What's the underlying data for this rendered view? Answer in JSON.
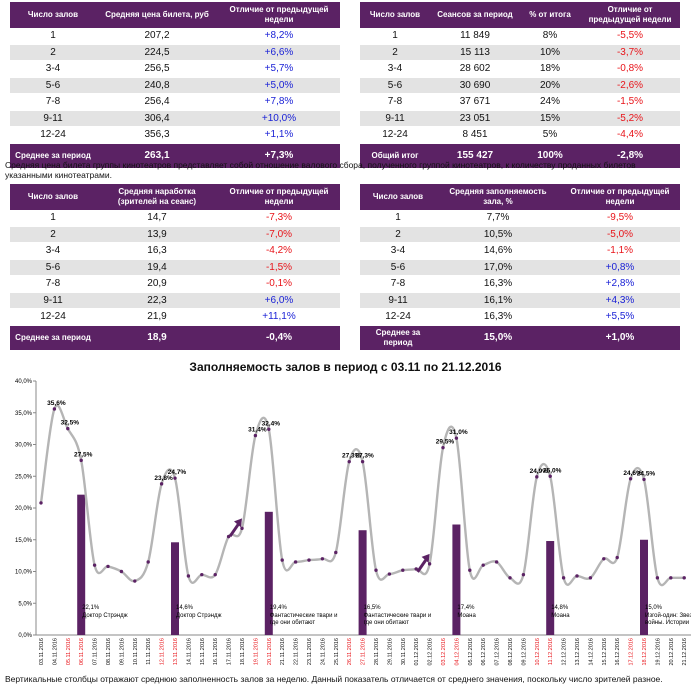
{
  "table_price": {
    "headers": [
      "Число залов",
      "Средняя цена билета, руб",
      "Отличие от предыдущей недели"
    ],
    "rows": [
      {
        "halls": "1",
        "value": "207,2",
        "change": "+8,2%"
      },
      {
        "halls": "2",
        "value": "224,5",
        "change": "+6,6%"
      },
      {
        "halls": "3-4",
        "value": "256,5",
        "change": "+5,7%"
      },
      {
        "halls": "5-6",
        "value": "240,8",
        "change": "+5,0%"
      },
      {
        "halls": "7-8",
        "value": "256,4",
        "change": "+7,8%"
      },
      {
        "halls": "9-11",
        "value": "306,4",
        "change": "+10,0%"
      },
      {
        "halls": "12-24",
        "value": "356,3",
        "change": "+1,1%"
      }
    ],
    "total": {
      "label": "Среднее за период",
      "value": "263,1",
      "change": "+7,3%"
    }
  },
  "table_sessions": {
    "headers": [
      "Число залов",
      "Сеансов за период",
      "% от итога",
      "Отличие от предыдущей недели"
    ],
    "rows": [
      {
        "halls": "1",
        "value": "11 849",
        "pct": "8%",
        "change": "-5,5%"
      },
      {
        "halls": "2",
        "value": "15 113",
        "pct": "10%",
        "change": "-3,7%"
      },
      {
        "halls": "3-4",
        "value": "28 602",
        "pct": "18%",
        "change": "-0,8%"
      },
      {
        "halls": "5-6",
        "value": "30 690",
        "pct": "20%",
        "change": "-2,6%"
      },
      {
        "halls": "7-8",
        "value": "37 671",
        "pct": "24%",
        "change": "-1,5%"
      },
      {
        "halls": "9-11",
        "value": "23 051",
        "pct": "15%",
        "change": "-5,2%"
      },
      {
        "halls": "12-24",
        "value": "8 451",
        "pct": "5%",
        "change": "-4,4%"
      }
    ],
    "total": {
      "label": "Общий итог",
      "value": "155 427",
      "pct": "100%",
      "change": "-2,8%"
    }
  },
  "note_price": "Средняя цена билета группы кинотеатров представляет собой отношение валового сбора, полученного группой кинотеатров, к количеству проданных билетов указанными кинотеатрами.",
  "table_workload": {
    "headers": [
      "Число залов",
      "Средняя наработка (зрителей на сеанс)",
      "Отличие от предыдущей недели"
    ],
    "rows": [
      {
        "halls": "1",
        "value": "14,7",
        "change": "-7,3%"
      },
      {
        "halls": "2",
        "value": "13,9",
        "change": "-7,0%"
      },
      {
        "halls": "3-4",
        "value": "16,3",
        "change": "-4,2%"
      },
      {
        "halls": "5-6",
        "value": "19,4",
        "change": "-1,5%"
      },
      {
        "halls": "7-8",
        "value": "20,9",
        "change": "-0,1%"
      },
      {
        "halls": "9-11",
        "value": "22,3",
        "change": "+6,0%"
      },
      {
        "halls": "12-24",
        "value": "21,9",
        "change": "+11,1%"
      }
    ],
    "total": {
      "label": "Среднее за период",
      "value": "18,9",
      "change": "-0,4%"
    }
  },
  "table_occupancy": {
    "headers": [
      "Число залов",
      "Средняя заполняемость зала, %",
      "Отличие от предыдущей недели"
    ],
    "rows": [
      {
        "halls": "1",
        "value": "7,7%",
        "change": "-9,5%"
      },
      {
        "halls": "2",
        "value": "10,5%",
        "change": "-5,0%"
      },
      {
        "halls": "3-4",
        "value": "14,6%",
        "change": "-1,1%"
      },
      {
        "halls": "5-6",
        "value": "17,0%",
        "change": "+0,8%"
      },
      {
        "halls": "7-8",
        "value": "16,3%",
        "change": "+2,8%"
      },
      {
        "halls": "9-11",
        "value": "16,1%",
        "change": "+4,3%"
      },
      {
        "halls": "12-24",
        "value": "16,3%",
        "change": "+5,5%"
      }
    ],
    "total": {
      "label": "Среднее за период",
      "value": "15,0%",
      "change": "+1,0%"
    }
  },
  "chart_title": "Заполняемость залов в период с 03.11 по 21.12.2016",
  "note_chart": "Вертикальные столбцы отражают среднюю заполненность залов за неделю. Данный показатель отличается от среднего значения, поскольку число зрителей разное.",
  "colors": {
    "header": "#5b2264",
    "line": "#b5b5b5",
    "bar": "#5b2264",
    "marker": "#5b2264",
    "arrow": "#5b2264",
    "positive": "#1b22d6",
    "negative": "#e8141a",
    "weekend_date": "#e8141a"
  },
  "chart_data": {
    "type": "line",
    "title": "Заполняемость залов в период с 03.11 по 21.12.2016",
    "ylim": [
      0,
      40
    ],
    "yticks": [
      "0,0%",
      "5,0%",
      "10,0%",
      "15,0%",
      "20,0%",
      "25,0%",
      "30,0%",
      "35,0%",
      "40,0%"
    ],
    "dates": [
      "03.11.2016",
      "04.11.2016",
      "05.11.2016",
      "06.11.2016",
      "07.11.2016",
      "08.11.2016",
      "09.11.2016",
      "10.11.2016",
      "11.11.2016",
      "12.11.2016",
      "13.11.2016",
      "14.11.2016",
      "15.11.2016",
      "16.11.2016",
      "17.11.2016",
      "18.11.2016",
      "19.11.2016",
      "20.11.2016",
      "21.11.2016",
      "22.11.2016",
      "23.11.2016",
      "24.11.2016",
      "25.11.2016",
      "26.11.2016",
      "27.11.2016",
      "28.11.2016",
      "29.11.2016",
      "30.11.2016",
      "01.12.2016",
      "02.12.2016",
      "03.12.2016",
      "04.12.2016",
      "05.12.2016",
      "06.12.2016",
      "07.12.2016",
      "08.12.2016",
      "09.12.2016",
      "10.12.2016",
      "11.12.2016",
      "12.12.2016",
      "13.12.2016",
      "14.12.2016",
      "15.12.2016",
      "16.12.2016",
      "17.12.2016",
      "18.12.2016",
      "19.12.2016",
      "20.12.2016",
      "21.12.2016"
    ],
    "red_dates": [
      2,
      3,
      9,
      10,
      16,
      17,
      23,
      24,
      30,
      31,
      37,
      38,
      44,
      45
    ],
    "series": [
      {
        "name": "Заполняемость",
        "values": [
          20.8,
          35.6,
          32.5,
          27.5,
          11.0,
          10.8,
          10.0,
          8.5,
          11.5,
          23.8,
          24.7,
          9.3,
          9.5,
          9.5,
          15.5,
          16.8,
          31.4,
          32.4,
          11.8,
          11.5,
          11.8,
          12.0,
          13.0,
          27.3,
          27.3,
          10.2,
          9.6,
          10.2,
          10.4,
          11.2,
          29.5,
          31.0,
          10.2,
          11.0,
          11.5,
          9.0,
          9.5,
          24.9,
          25.0,
          9.0,
          9.3,
          9.0,
          12.0,
          12.2,
          24.6,
          24.5,
          9.0,
          9.0,
          9.0
        ]
      }
    ],
    "labeled_points": [
      {
        "index": 1,
        "text": "35,6%"
      },
      {
        "index": 2,
        "text": "32,5%"
      },
      {
        "index": 3,
        "text": "27,5%"
      },
      {
        "index": 9,
        "text": "23,8%"
      },
      {
        "index": 10,
        "text": "24,7%"
      },
      {
        "index": 16,
        "text": "31,4%"
      },
      {
        "index": 17,
        "text": "32,4%"
      },
      {
        "index": 23,
        "text": "27,3%"
      },
      {
        "index": 24,
        "text": "27,3%"
      },
      {
        "index": 30,
        "text": "29,5%"
      },
      {
        "index": 31,
        "text": "31,0%"
      },
      {
        "index": 37,
        "text": "24,9%"
      },
      {
        "index": 38,
        "text": "25,0%"
      },
      {
        "index": 44,
        "text": "24,6%"
      },
      {
        "index": 45,
        "text": "24,5%"
      }
    ],
    "bars": [
      {
        "index": 3,
        "value": 22.1,
        "label": "22,1%",
        "film": "Доктор Стрэндж"
      },
      {
        "index": 10,
        "value": 14.6,
        "label": "14,6%",
        "film": "Доктор Стрэндж"
      },
      {
        "index": 17,
        "value": 19.4,
        "label": "19,4%",
        "film": "Фантастические твари и где они обитают"
      },
      {
        "index": 24,
        "value": 16.5,
        "label": "16,5%",
        "film": "Фантастические твари и где они обитают"
      },
      {
        "index": 31,
        "value": 17.4,
        "label": "17,4%",
        "film": "Моана"
      },
      {
        "index": 38,
        "value": 14.8,
        "label": "14,8%",
        "film": "Моана"
      },
      {
        "index": 45,
        "value": 15.0,
        "label": "15,0%",
        "film": "Изгой-один: Звездные войны. Истории"
      }
    ],
    "arrows": [
      {
        "after_index": 15
      },
      {
        "after_index": 29
      }
    ]
  }
}
